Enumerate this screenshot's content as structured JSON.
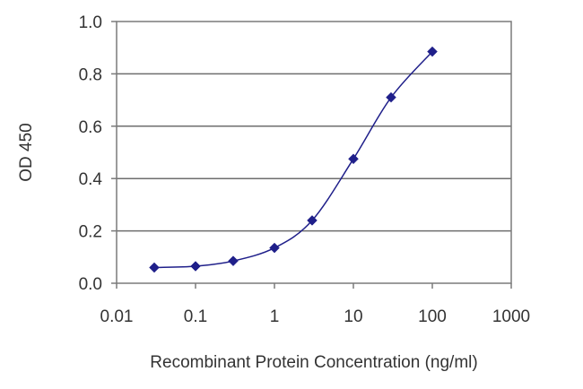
{
  "chart_data": {
    "type": "line",
    "xlabel": "Recombinant Protein Concentration (ng/ml)",
    "ylabel": "OD 450",
    "x_scale": "log",
    "xlim": [
      0.01,
      1000
    ],
    "ylim": [
      0.0,
      1.0
    ],
    "x_ticks": [
      "0.01",
      "0.1",
      "1",
      "10",
      "100",
      "1000"
    ],
    "y_ticks": [
      "0.0",
      "0.2",
      "0.4",
      "0.6",
      "0.8",
      "1.0"
    ],
    "grid": "horizontal",
    "series": [
      {
        "x": [
          0.03,
          0.1,
          0.3,
          1,
          3,
          10,
          30,
          100
        ],
        "y": [
          0.06,
          0.065,
          0.085,
          0.135,
          0.24,
          0.475,
          0.71,
          0.885
        ],
        "color": "#1f1f8a",
        "marker": "diamond"
      }
    ]
  }
}
